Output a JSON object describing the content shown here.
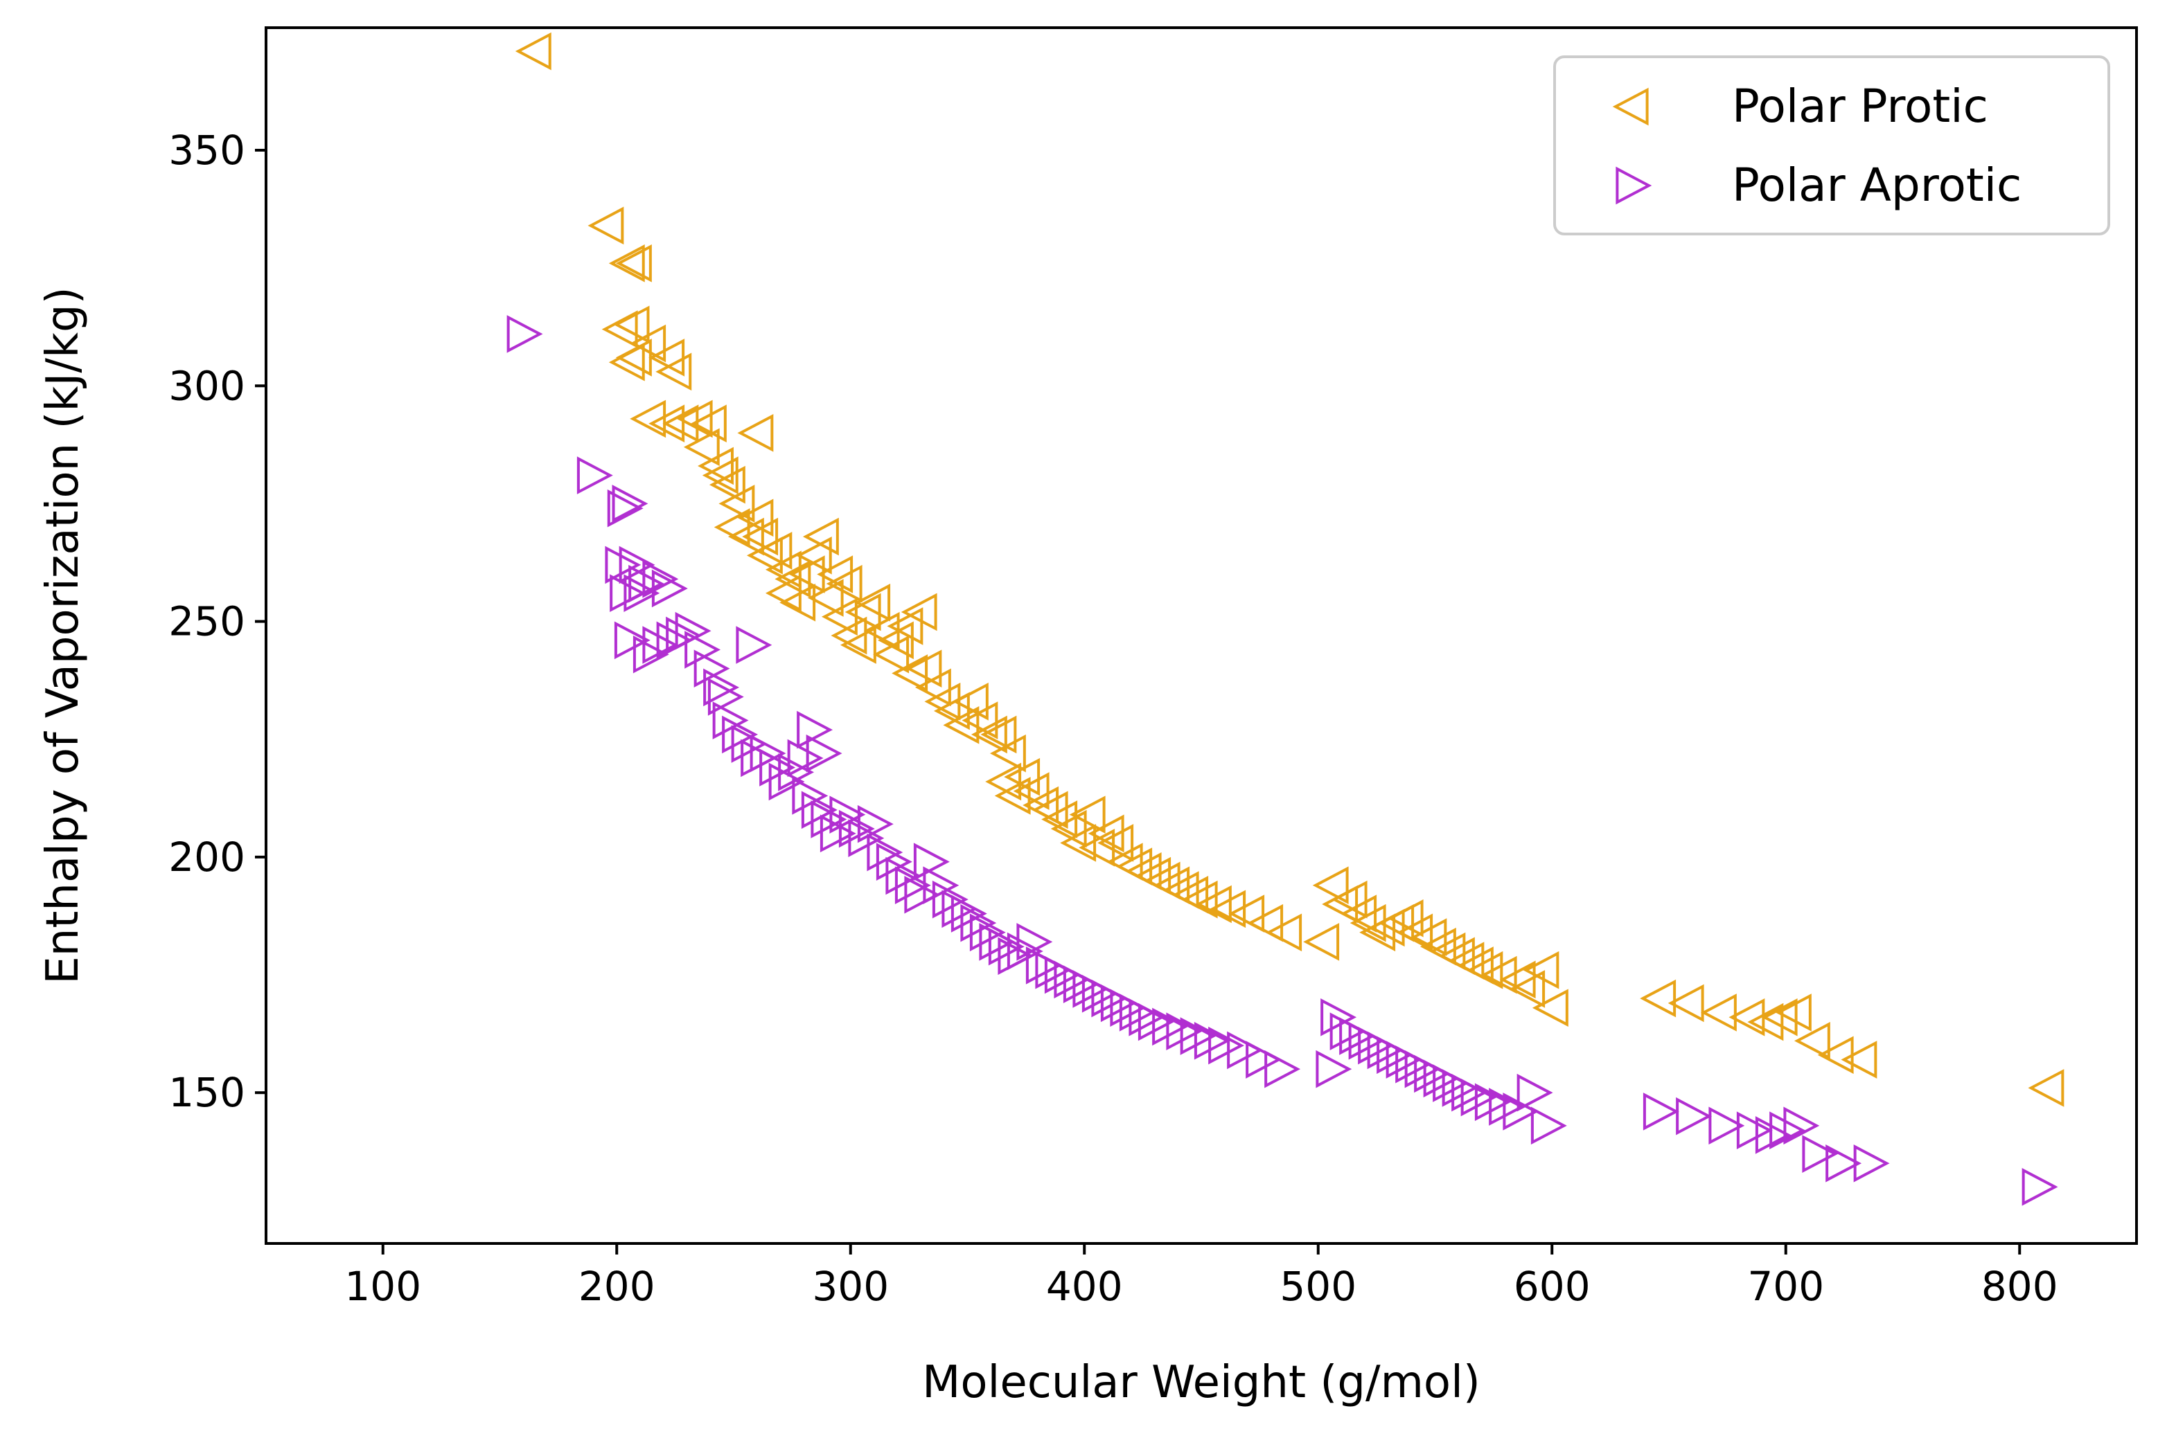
{
  "chart_data": {
    "type": "scatter",
    "title": "",
    "xlabel": "Molecular Weight (g/mol)",
    "ylabel": "Enthalpy of Vaporization (kJ/kg)",
    "xlim": [
      50,
      850
    ],
    "ylim": [
      118,
      376
    ],
    "xticks": [
      100,
      200,
      300,
      400,
      500,
      600,
      700,
      800
    ],
    "yticks": [
      150,
      200,
      250,
      300,
      350
    ],
    "grid": false,
    "legend_position": "top-right",
    "series": [
      {
        "name": "Polar Protic",
        "marker": "triangle-left",
        "color": "#E8A317",
        "points": [
          [
            165,
            371
          ],
          [
            196,
            334
          ],
          [
            205,
            326
          ],
          [
            208,
            326
          ],
          [
            202,
            312
          ],
          [
            207,
            313
          ],
          [
            205,
            305
          ],
          [
            208,
            306
          ],
          [
            214,
            309
          ],
          [
            222,
            306
          ],
          [
            225,
            303
          ],
          [
            214,
            293
          ],
          [
            222,
            292
          ],
          [
            228,
            292
          ],
          [
            234,
            293
          ],
          [
            240,
            292
          ],
          [
            237,
            287
          ],
          [
            243,
            283
          ],
          [
            245,
            281
          ],
          [
            260,
            290
          ],
          [
            248,
            279
          ],
          [
            252,
            275
          ],
          [
            250,
            270
          ],
          [
            256,
            268
          ],
          [
            260,
            272
          ],
          [
            262,
            268
          ],
          [
            264,
            264
          ],
          [
            268,
            265
          ],
          [
            272,
            261
          ],
          [
            276,
            259
          ],
          [
            272,
            256
          ],
          [
            278,
            254
          ],
          [
            282,
            260
          ],
          [
            285,
            264
          ],
          [
            288,
            268
          ],
          [
            290,
            255
          ],
          [
            294,
            260
          ],
          [
            298,
            258
          ],
          [
            296,
            251
          ],
          [
            300,
            247
          ],
          [
            304,
            245
          ],
          [
            306,
            252
          ],
          [
            310,
            254
          ],
          [
            314,
            248
          ],
          [
            318,
            243
          ],
          [
            320,
            246
          ],
          [
            324,
            249
          ],
          [
            330,
            252
          ],
          [
            326,
            239
          ],
          [
            332,
            240
          ],
          [
            336,
            236
          ],
          [
            340,
            233
          ],
          [
            344,
            231
          ],
          [
            348,
            228
          ],
          [
            352,
            233
          ],
          [
            356,
            229
          ],
          [
            360,
            226
          ],
          [
            364,
            226
          ],
          [
            368,
            222
          ],
          [
            366,
            216
          ],
          [
            370,
            213
          ],
          [
            374,
            217
          ],
          [
            378,
            214
          ],
          [
            382,
            211
          ],
          [
            386,
            210
          ],
          [
            390,
            208
          ],
          [
            394,
            206
          ],
          [
            398,
            203
          ],
          [
            402,
            209
          ],
          [
            406,
            202
          ],
          [
            410,
            205
          ],
          [
            414,
            203
          ],
          [
            418,
            199
          ],
          [
            422,
            198
          ],
          [
            426,
            197
          ],
          [
            430,
            196
          ],
          [
            434,
            195
          ],
          [
            438,
            194
          ],
          [
            442,
            193
          ],
          [
            446,
            192
          ],
          [
            450,
            191
          ],
          [
            456,
            190
          ],
          [
            462,
            189
          ],
          [
            470,
            188
          ],
          [
            478,
            186
          ],
          [
            486,
            184
          ],
          [
            502,
            182
          ],
          [
            506,
            194
          ],
          [
            510,
            190
          ],
          [
            514,
            191
          ],
          [
            518,
            188
          ],
          [
            522,
            186
          ],
          [
            526,
            184
          ],
          [
            530,
            185
          ],
          [
            534,
            186
          ],
          [
            538,
            187
          ],
          [
            542,
            184
          ],
          [
            548,
            183
          ],
          [
            552,
            181
          ],
          [
            556,
            180
          ],
          [
            560,
            179
          ],
          [
            564,
            178
          ],
          [
            568,
            177
          ],
          [
            572,
            176
          ],
          [
            578,
            175
          ],
          [
            586,
            174
          ],
          [
            590,
            172
          ],
          [
            596,
            176
          ],
          [
            600,
            168
          ],
          [
            646,
            170
          ],
          [
            658,
            169
          ],
          [
            672,
            167
          ],
          [
            684,
            166
          ],
          [
            692,
            165
          ],
          [
            698,
            166
          ],
          [
            704,
            167
          ],
          [
            712,
            161
          ],
          [
            722,
            158
          ],
          [
            732,
            157
          ],
          [
            812,
            151
          ]
        ]
      },
      {
        "name": "Polar Aprotic",
        "marker": "triangle-right",
        "color": "#B12FD1",
        "points": [
          [
            160,
            311
          ],
          [
            190,
            281
          ],
          [
            205,
            275
          ],
          [
            203,
            274
          ],
          [
            202,
            262
          ],
          [
            208,
            262
          ],
          [
            212,
            258
          ],
          [
            218,
            259
          ],
          [
            222,
            257
          ],
          [
            204,
            256
          ],
          [
            210,
            256
          ],
          [
            206,
            246
          ],
          [
            214,
            243
          ],
          [
            218,
            245
          ],
          [
            224,
            246
          ],
          [
            228,
            247
          ],
          [
            232,
            248
          ],
          [
            236,
            244
          ],
          [
            240,
            240
          ],
          [
            244,
            236
          ],
          [
            258,
            245
          ],
          [
            246,
            234
          ],
          [
            248,
            229
          ],
          [
            252,
            226
          ],
          [
            256,
            224
          ],
          [
            260,
            221
          ],
          [
            264,
            222
          ],
          [
            268,
            219
          ],
          [
            272,
            216
          ],
          [
            276,
            218
          ],
          [
            280,
            221
          ],
          [
            284,
            227
          ],
          [
            288,
            222
          ],
          [
            282,
            213
          ],
          [
            286,
            210
          ],
          [
            290,
            208
          ],
          [
            294,
            205
          ],
          [
            298,
            209
          ],
          [
            302,
            206
          ],
          [
            306,
            204
          ],
          [
            310,
            207
          ],
          [
            314,
            201
          ],
          [
            318,
            199
          ],
          [
            322,
            196
          ],
          [
            326,
            194
          ],
          [
            330,
            192
          ],
          [
            334,
            199
          ],
          [
            338,
            194
          ],
          [
            342,
            191
          ],
          [
            346,
            189
          ],
          [
            350,
            188
          ],
          [
            354,
            186
          ],
          [
            358,
            184
          ],
          [
            362,
            182
          ],
          [
            366,
            181
          ],
          [
            370,
            179
          ],
          [
            374,
            180
          ],
          [
            378,
            182
          ],
          [
            382,
            177
          ],
          [
            386,
            176
          ],
          [
            390,
            175
          ],
          [
            394,
            174
          ],
          [
            398,
            173
          ],
          [
            402,
            172
          ],
          [
            406,
            171
          ],
          [
            410,
            170
          ],
          [
            414,
            169
          ],
          [
            418,
            168
          ],
          [
            422,
            167
          ],
          [
            426,
            166
          ],
          [
            430,
            165
          ],
          [
            436,
            164
          ],
          [
            442,
            163
          ],
          [
            448,
            162
          ],
          [
            454,
            161
          ],
          [
            460,
            160
          ],
          [
            468,
            159
          ],
          [
            476,
            157
          ],
          [
            484,
            155
          ],
          [
            506,
            155
          ],
          [
            508,
            166
          ],
          [
            512,
            163
          ],
          [
            516,
            162
          ],
          [
            520,
            161
          ],
          [
            524,
            160
          ],
          [
            528,
            159
          ],
          [
            532,
            158
          ],
          [
            536,
            157
          ],
          [
            540,
            156
          ],
          [
            544,
            155
          ],
          [
            548,
            154
          ],
          [
            552,
            153
          ],
          [
            556,
            152
          ],
          [
            560,
            151
          ],
          [
            564,
            150
          ],
          [
            568,
            149
          ],
          [
            574,
            148
          ],
          [
            580,
            147
          ],
          [
            586,
            146
          ],
          [
            592,
            150
          ],
          [
            598,
            143
          ],
          [
            646,
            146
          ],
          [
            660,
            145
          ],
          [
            674,
            143
          ],
          [
            686,
            142
          ],
          [
            694,
            141
          ],
          [
            700,
            142
          ],
          [
            706,
            143
          ],
          [
            714,
            137
          ],
          [
            724,
            135
          ],
          [
            736,
            135
          ],
          [
            808,
            130
          ]
        ]
      }
    ]
  }
}
